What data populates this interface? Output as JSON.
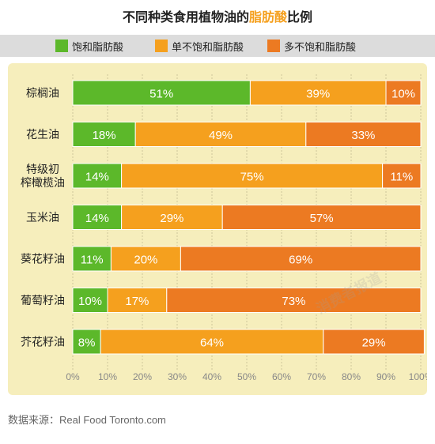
{
  "header": {
    "title_pre": "不同种类食用植物油的",
    "title_highlight": "脂肪酸",
    "title_post": "比例"
  },
  "source": "数据来源：Real Food Toronto.com",
  "watermark": "消费者报道",
  "colors": {
    "saturated": "#5cb82a",
    "mono": "#f5a01e",
    "poly": "#ec7a22",
    "title_highlight": "#f5a01e",
    "panel": "#f6eebc",
    "legend_band": "#dcdcdc"
  },
  "chart_data": {
    "type": "bar",
    "orientation": "horizontal",
    "stacked": true,
    "categories": [
      [
        "棕榈油"
      ],
      [
        "花生油"
      ],
      [
        "特级初",
        "榨橄榄油"
      ],
      [
        "玉米油"
      ],
      [
        "葵花籽油"
      ],
      [
        "葡萄籽油"
      ],
      [
        "芥花籽油"
      ]
    ],
    "series": [
      {
        "name": "饱和脂肪酸",
        "color": "#5cb82a",
        "values": [
          51,
          18,
          14,
          14,
          11,
          10,
          8
        ]
      },
      {
        "name": "单不饱和脂肪酸",
        "color": "#f5a01e",
        "values": [
          39,
          49,
          75,
          29,
          20,
          17,
          64
        ]
      },
      {
        "name": "多不饱和脂肪酸",
        "color": "#ec7a22",
        "values": [
          10,
          33,
          11,
          57,
          69,
          73,
          29
        ]
      }
    ],
    "value_suffix": "%",
    "xlim": [
      0,
      100
    ],
    "xticks": [
      "0%",
      "10%",
      "20%",
      "30%",
      "40%",
      "50%",
      "60%",
      "70%",
      "80%",
      "90%",
      "100%"
    ],
    "legend_position": "top",
    "grid": true
  }
}
